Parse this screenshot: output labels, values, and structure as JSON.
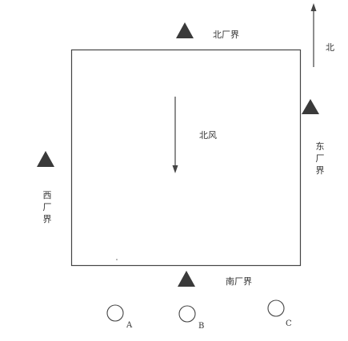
{
  "labels": {
    "north_boundary": "北厂界",
    "east_boundary": "东厂界",
    "west_boundary": "西厂界",
    "south_boundary": "南厂界",
    "north_direction": "北",
    "wind": "北风"
  },
  "points": [
    "A",
    "B",
    "C"
  ],
  "icons": {
    "monitor_marker": "filled-triangle",
    "sampling_point": "circle",
    "compass_arrow": "up-arrow",
    "wind_arrow": "down-arrow"
  },
  "colors": {
    "marker": "#3a3a3a",
    "line": "#444444"
  }
}
